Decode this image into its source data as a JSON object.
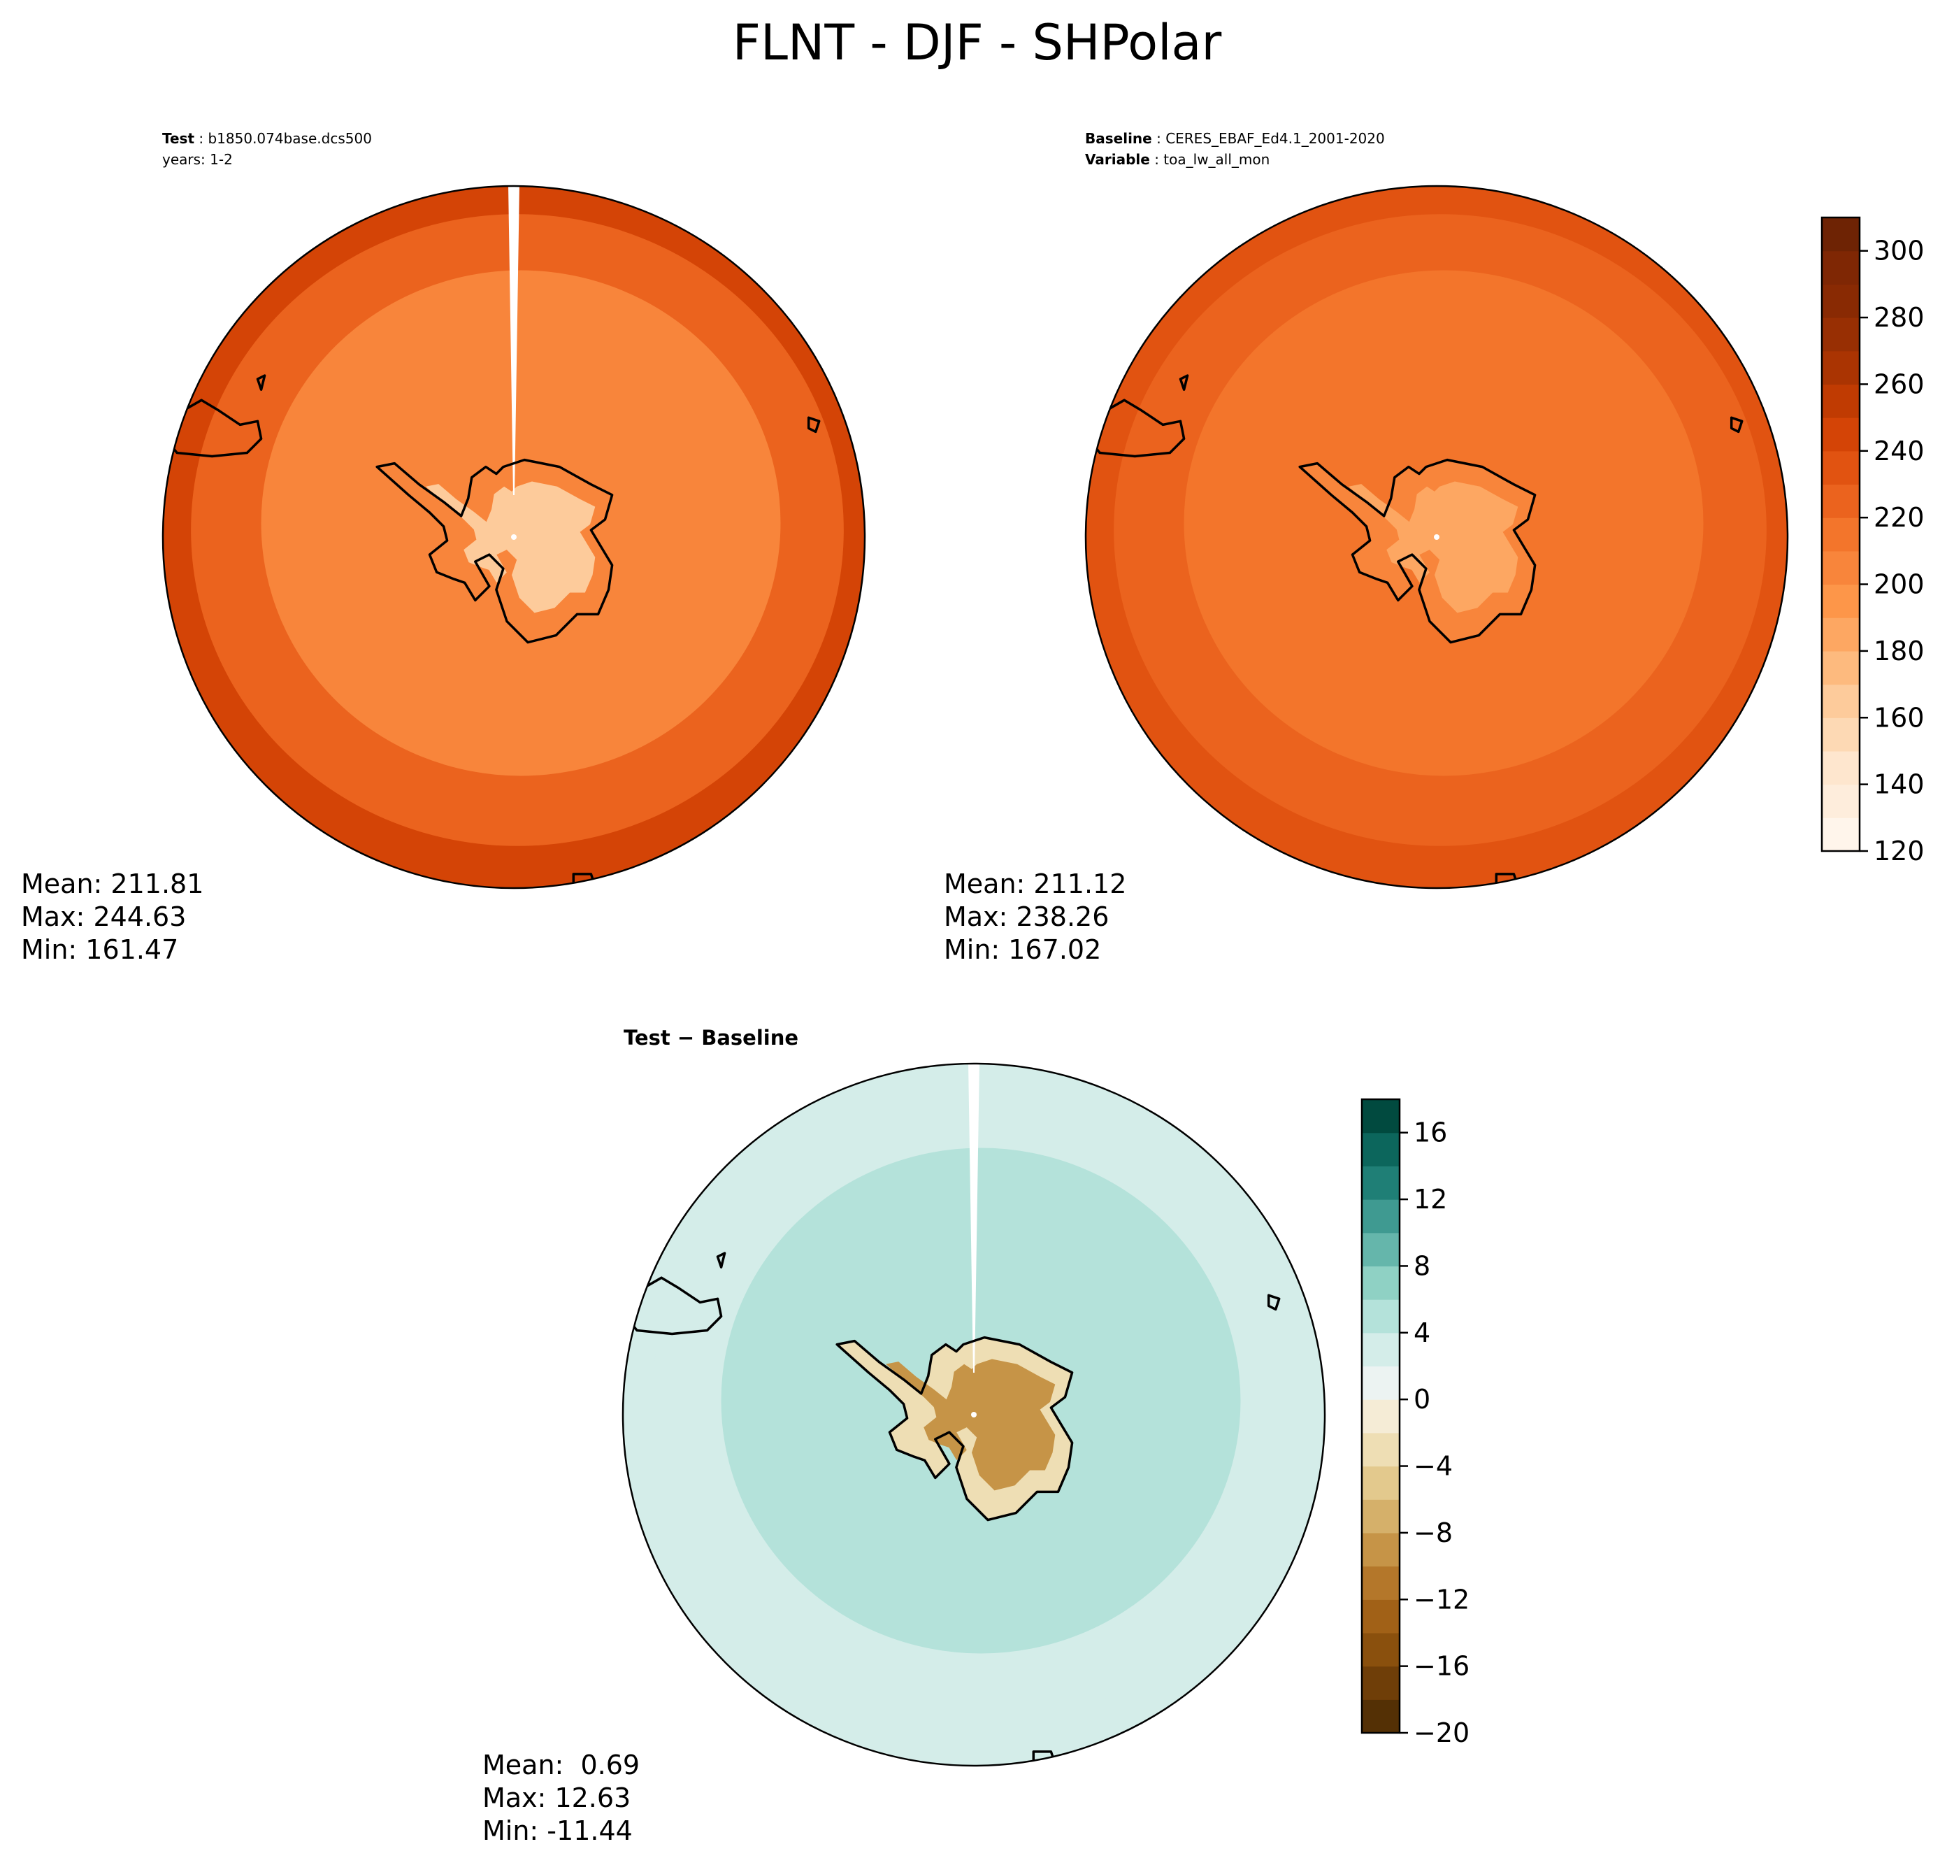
{
  "figure_title": "FLNT - DJF - SHPolar",
  "colors": {
    "land_outline": "#000000",
    "plot_border": "#000000"
  },
  "chart_data": [
    {
      "id": "test",
      "type": "heatmap",
      "projection": "south-polar-stereographic",
      "header": [
        {
          "label": "Test",
          "value": "b1850.074base.dcs500"
        },
        {
          "label": "",
          "value": "years: 1-2"
        }
      ],
      "stats": {
        "mean": "Mean: 211.81",
        "max": "Max: 244.63",
        "min": "Min: 161.47"
      },
      "field": {
        "ocean_outer": 240,
        "ocean_mid": 222,
        "ocean_inner": 208,
        "land_edge": 200,
        "land_interior": 168
      }
    },
    {
      "id": "baseline",
      "type": "heatmap",
      "projection": "south-polar-stereographic",
      "header": [
        {
          "label": "Baseline",
          "value": "CERES_EBAF_Ed4.1_2001-2020"
        },
        {
          "label": "Variable",
          "value": "toa_lw_all_mon"
        }
      ],
      "stats": {
        "mean": "Mean: 211.12",
        "max": "Max: 238.26",
        "min": "Min: 167.02"
      },
      "field": {
        "ocean_outer": 234,
        "ocean_mid": 220,
        "ocean_inner": 210,
        "land_edge": 200,
        "land_interior": 182
      }
    },
    {
      "id": "difference",
      "type": "heatmap",
      "projection": "south-polar-stereographic",
      "title": "Test − Baseline",
      "stats": {
        "mean": "Mean:  0.69",
        "max": "Max: 12.63",
        "min": "Min: -11.44"
      },
      "field": {
        "ocean_outer": 2,
        "ocean_mid": 3,
        "ocean_inner": 5,
        "land_edge": -3,
        "land_interior": -9
      }
    }
  ],
  "colorbars": [
    {
      "id": "abs",
      "colormap": "Oranges",
      "range": [
        120,
        310
      ],
      "levels": [
        120,
        130,
        140,
        150,
        160,
        170,
        180,
        190,
        200,
        210,
        220,
        230,
        240,
        250,
        260,
        270,
        280,
        290,
        300,
        310
      ],
      "ticks": [
        "120",
        "140",
        "160",
        "180",
        "200",
        "220",
        "240",
        "260",
        "280",
        "300"
      ],
      "colors": [
        "#fff5eb",
        "#feeddc",
        "#fee6ce",
        "#fdd9b4",
        "#fdcb9b",
        "#fdba7e",
        "#fda762",
        "#fd9649",
        "#f8853b",
        "#f3752b",
        "#eb631e",
        "#e15311",
        "#d44406",
        "#c03b02",
        "#aa3402",
        "#982f03",
        "#892a03",
        "#7f2704",
        "#6e2304"
      ]
    },
    {
      "id": "diff",
      "colormap": "BrBG",
      "range": [
        -20,
        18
      ],
      "levels": [
        -20,
        -18,
        -16,
        -14,
        -12,
        -10,
        -8,
        -6,
        -4,
        -2,
        0,
        2,
        4,
        6,
        8,
        10,
        12,
        14,
        16,
        18
      ],
      "ticks": [
        "−20",
        "−16",
        "−12",
        "−8",
        "−4",
        "0",
        "4",
        "8",
        "12",
        "16"
      ],
      "colors": [
        "#543005",
        "#6f3e08",
        "#8a500d",
        "#a16117",
        "#b4772a",
        "#c69447",
        "#d5b06a",
        "#e3c98d",
        "#eedeb4",
        "#f5ecd6",
        "#ecf3f2",
        "#d4ede9",
        "#b4e2da",
        "#8fd1c4",
        "#65b6ab",
        "#3f9a91",
        "#1f7f76",
        "#0c665c",
        "#014a3f"
      ]
    }
  ]
}
